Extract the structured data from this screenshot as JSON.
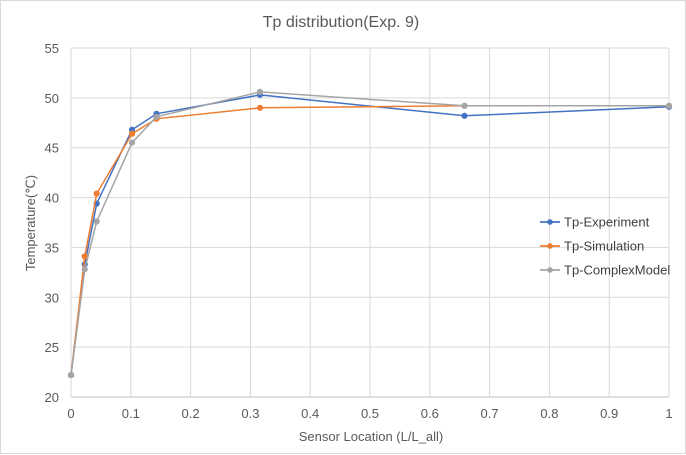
{
  "chart_data": {
    "type": "line",
    "title": "Tp distribution(Exp. 9)",
    "xlabel": "Sensor Location (L/L_all)",
    "ylabel": "Temperature(℃)",
    "xlim": [
      0,
      1
    ],
    "ylim": [
      20,
      55
    ],
    "x_ticks": [
      "0",
      "0.1",
      "0.2",
      "0.3",
      "0.4",
      "0.5",
      "0.6",
      "0.7",
      "0.8",
      "0.9",
      "1"
    ],
    "y_ticks": [
      "20",
      "25",
      "30",
      "35",
      "40",
      "45",
      "50",
      "55"
    ],
    "grid": true,
    "legend_position": "right",
    "series": [
      {
        "name": "Tp-Experiment",
        "color": "#4472c4",
        "x": [
          0,
          0.023,
          0.043,
          0.102,
          0.143,
          0.316,
          0.658,
          1.0
        ],
        "y": [
          22.2,
          33.3,
          39.4,
          46.8,
          48.4,
          50.3,
          48.2,
          49.1
        ]
      },
      {
        "name": "Tp-Simulation",
        "color": "#ed7d31",
        "x": [
          0,
          0.023,
          0.043,
          0.102,
          0.143,
          0.316,
          0.658,
          1.0
        ],
        "y": [
          22.2,
          34.1,
          40.4,
          46.4,
          47.9,
          49.0,
          49.2,
          49.2
        ]
      },
      {
        "name": "Tp-ComplexModel",
        "color": "#a5a5a5",
        "x": [
          0,
          0.023,
          0.043,
          0.102,
          0.143,
          0.316,
          0.658,
          1.0
        ],
        "y": [
          22.2,
          32.8,
          37.6,
          45.5,
          48.1,
          50.6,
          49.2,
          49.2
        ]
      }
    ]
  }
}
